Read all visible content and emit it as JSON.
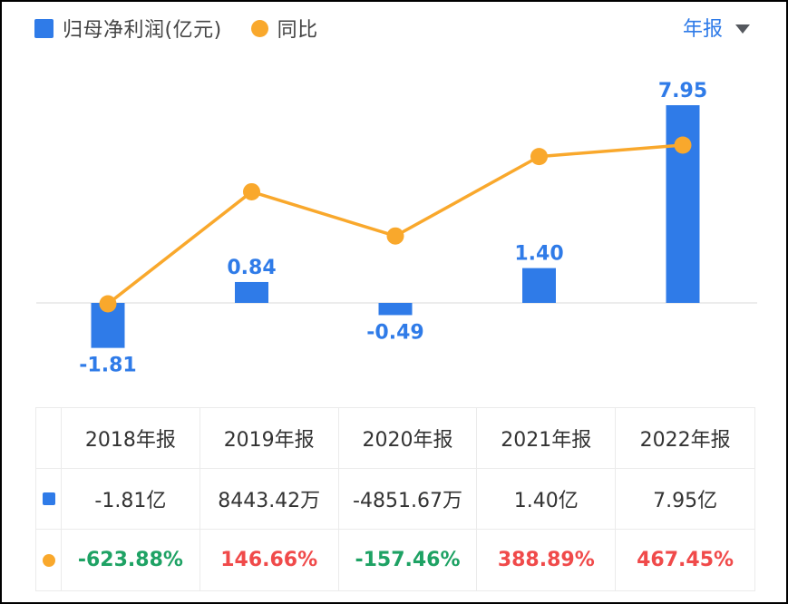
{
  "colors": {
    "blue": "#2F7BE8",
    "orange": "#F9A82C",
    "green": "#1EA264",
    "red": "#F04A4A",
    "axis": "#E6E6E6",
    "text_dark": "#333333"
  },
  "legend": {
    "bar_label": "归母净利润(亿元)",
    "line_label": "同比"
  },
  "period_selector": {
    "label": "年报"
  },
  "chart_data": {
    "type": "bar",
    "categories": [
      "2018年报",
      "2019年报",
      "2020年报",
      "2021年报",
      "2022年报"
    ],
    "series": [
      {
        "name": "归母净利润(亿元)",
        "type": "bar",
        "values": [
          -1.81,
          0.84,
          -0.49,
          1.4,
          7.95
        ],
        "labels": [
          "-1.81",
          "0.84",
          "-0.49",
          "1.40",
          "7.95"
        ]
      },
      {
        "name": "同比",
        "type": "line",
        "unit": "%",
        "values": [
          -623.88,
          146.66,
          -157.46,
          388.89,
          467.45
        ]
      }
    ],
    "title": "",
    "xlabel": "",
    "ylabel": "",
    "grid": false,
    "legend_position": "top-left",
    "value_labels_shown_for": "bar-series-only"
  },
  "table": {
    "headers": [
      "2018年报",
      "2019年报",
      "2020年报",
      "2021年报",
      "2022年报"
    ],
    "rows": [
      {
        "icon": "blue-square-icon",
        "cells": [
          "-1.81亿",
          "8443.42万",
          "-4851.67万",
          "1.40亿",
          "7.95亿"
        ],
        "cell_colors": [
          "dark",
          "dark",
          "dark",
          "dark",
          "dark"
        ]
      },
      {
        "icon": "orange-dot-icon",
        "cells": [
          "-623.88%",
          "146.66%",
          "-157.46%",
          "388.89%",
          "467.45%"
        ],
        "cell_colors": [
          "green",
          "red",
          "green",
          "red",
          "red"
        ]
      }
    ]
  }
}
